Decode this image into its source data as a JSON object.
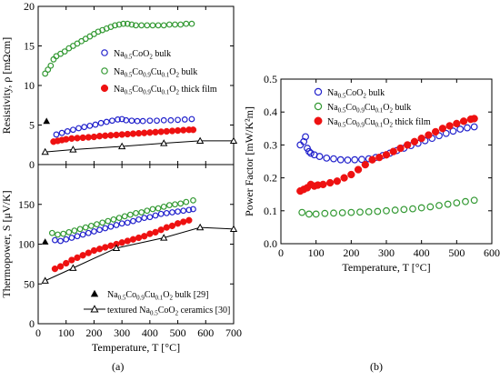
{
  "chart_data": [
    {
      "id": "a_top",
      "type": "scatter",
      "ylabel": "Resistivity, ρ [mΩcm]",
      "xlim": [
        0,
        700
      ],
      "ylim": [
        0,
        20
      ],
      "yticks": [
        0,
        5,
        10,
        15,
        20
      ],
      "xticks": [
        0,
        100,
        200,
        300,
        400,
        500,
        600,
        700
      ],
      "show_x_ticklabels": false,
      "legend": {
        "position": "middle-right",
        "entries": [
          {
            "pre": "Na",
            "sub1": "0.5",
            "post1": "CoO",
            "sub2": "2",
            "post2": " bulk"
          },
          {
            "pre": "Na",
            "sub1": "0.5",
            "post1": "Co",
            "sub2": "0.9",
            "post2": "Cu",
            "sub3": "0.1",
            "post3": "O",
            "sub4": "2",
            "post4": " bulk"
          },
          {
            "pre": "Na",
            "sub1": "0.5",
            "post1": "Co",
            "sub2": "0.9",
            "post2": "Cu",
            "sub3": "0.1",
            "post3": "O",
            "sub4": "2",
            "post4": " thick film"
          }
        ]
      },
      "series": [
        {
          "key": "blue",
          "marker": "open-circle",
          "color": "#2222cc",
          "x": [
            65,
            85,
            105,
            125,
            145,
            165,
            185,
            205,
            225,
            245,
            265,
            285,
            300,
            315,
            335,
            355,
            375,
            400,
            425,
            450,
            475,
            500,
            525,
            550
          ],
          "y": [
            3.8,
            4.0,
            4.2,
            4.4,
            4.6,
            4.75,
            4.9,
            5.05,
            5.25,
            5.4,
            5.55,
            5.7,
            5.75,
            5.6,
            5.55,
            5.5,
            5.5,
            5.55,
            5.55,
            5.6,
            5.6,
            5.65,
            5.7,
            5.75
          ]
        },
        {
          "key": "green",
          "marker": "open-circle",
          "color": "#339933",
          "x": [
            25,
            35,
            45,
            55,
            65,
            80,
            95,
            110,
            125,
            140,
            155,
            170,
            185,
            200,
            215,
            230,
            245,
            260,
            275,
            290,
            305,
            320,
            335,
            350,
            370,
            390,
            410,
            430,
            450,
            470,
            490,
            510,
            530,
            550
          ],
          "y": [
            11.5,
            12.0,
            12.5,
            13.3,
            13.7,
            14.0,
            14.3,
            14.7,
            15.0,
            15.3,
            15.6,
            15.9,
            16.2,
            16.5,
            16.8,
            17.0,
            17.2,
            17.4,
            17.6,
            17.7,
            17.8,
            17.8,
            17.7,
            17.6,
            17.6,
            17.6,
            17.6,
            17.6,
            17.6,
            17.7,
            17.7,
            17.7,
            17.8,
            17.8
          ]
        },
        {
          "key": "red",
          "marker": "filled-circle",
          "color": "#ee1111",
          "x": [
            55,
            70,
            85,
            100,
            120,
            140,
            160,
            180,
            200,
            220,
            240,
            260,
            280,
            300,
            320,
            340,
            360,
            380,
            400,
            420,
            440,
            460,
            480,
            500,
            520,
            540,
            555
          ],
          "y": [
            2.9,
            3.0,
            3.1,
            3.2,
            3.3,
            3.35,
            3.4,
            3.45,
            3.5,
            3.6,
            3.65,
            3.7,
            3.75,
            3.8,
            3.85,
            3.9,
            3.95,
            4.0,
            4.05,
            4.1,
            4.15,
            4.2,
            4.25,
            4.3,
            4.35,
            4.4,
            4.4
          ]
        },
        {
          "key": "ref29",
          "marker": "filled-triangle",
          "color": "#000000",
          "x": [
            30
          ],
          "y": [
            5.5
          ]
        },
        {
          "key": "ref30",
          "marker": "open-triangle-line",
          "color": "#000000",
          "x": [
            25,
            125,
            300,
            450,
            580,
            700
          ],
          "y": [
            1.6,
            1.9,
            2.3,
            2.7,
            3.0,
            3.0
          ]
        }
      ]
    },
    {
      "id": "a_bottom",
      "type": "scatter",
      "xlabel": "Temperature, T [°C]",
      "ylabel": "Thermopower, S [μV/K]",
      "xlim": [
        0,
        700
      ],
      "ylim": [
        0,
        200
      ],
      "yticks": [
        0,
        50,
        100,
        150
      ],
      "xticks": [
        0,
        100,
        200,
        300,
        400,
        500,
        600,
        700
      ],
      "show_x_ticklabels": true,
      "legend": {
        "position": "bottom-center",
        "entries": [
          {
            "pre": "Na",
            "sub1": "0.5",
            "post1": "Co",
            "sub2": "0.9",
            "post2": "Cu",
            "sub3": "0.1",
            "post3": "O",
            "sub4": "2",
            "post4": " bulk [29]"
          },
          {
            "pre": "textured Na",
            "sub1": "0.5",
            "post1": "CoO",
            "sub2": "2",
            "post2": " ceramics [30]"
          }
        ]
      },
      "series": [
        {
          "key": "blue",
          "marker": "open-circle",
          "color": "#2222cc",
          "x": [
            60,
            80,
            100,
            120,
            140,
            160,
            180,
            200,
            220,
            240,
            260,
            280,
            300,
            320,
            340,
            360,
            380,
            400,
            420,
            440,
            460,
            480,
            500,
            520,
            540,
            555
          ],
          "y": [
            105,
            104,
            106,
            108,
            110,
            112,
            114,
            116,
            118,
            120,
            122,
            124,
            126,
            127,
            129,
            131,
            133,
            134,
            136,
            138,
            139,
            140,
            141,
            142,
            143,
            144
          ]
        },
        {
          "key": "green",
          "marker": "open-circle",
          "color": "#339933",
          "x": [
            50,
            70,
            90,
            110,
            130,
            150,
            170,
            190,
            210,
            230,
            250,
            270,
            290,
            310,
            330,
            350,
            370,
            390,
            410,
            430,
            450,
            470,
            490,
            510,
            530,
            555
          ],
          "y": [
            114,
            112,
            113,
            115,
            117,
            119,
            121,
            123,
            125,
            127,
            129,
            131,
            133,
            135,
            137,
            139,
            140,
            142,
            144,
            145,
            147,
            149,
            150,
            151,
            153,
            155
          ]
        },
        {
          "key": "red",
          "marker": "filled-circle",
          "color": "#ee1111",
          "x": [
            60,
            80,
            100,
            120,
            140,
            160,
            180,
            200,
            220,
            240,
            260,
            280,
            300,
            320,
            340,
            360,
            380,
            400,
            420,
            440,
            460,
            480,
            500,
            520,
            540
          ],
          "y": [
            69,
            72,
            76,
            80,
            83,
            86,
            89,
            92,
            94,
            96,
            98,
            100,
            102,
            104,
            106,
            108,
            110,
            113,
            115,
            118,
            121,
            123,
            126,
            128,
            130
          ]
        },
        {
          "key": "ref29",
          "marker": "filled-triangle",
          "color": "#000000",
          "x": [
            25
          ],
          "y": [
            103
          ]
        },
        {
          "key": "ref30",
          "marker": "open-triangle-line",
          "color": "#000000",
          "x": [
            25,
            125,
            280,
            450,
            580,
            700
          ],
          "y": [
            54,
            70,
            95,
            108,
            121,
            119
          ]
        }
      ]
    },
    {
      "id": "b",
      "type": "scatter",
      "xlabel": "Temperature, T [°C]",
      "ylabel": "Power Factor [mW/K²m]",
      "xlim": [
        0,
        600
      ],
      "ylim": [
        0.0,
        0.5
      ],
      "yticks": [
        0.0,
        0.1,
        0.2,
        0.3,
        0.4,
        0.5
      ],
      "xticks": [
        0,
        100,
        200,
        300,
        400,
        500,
        600
      ],
      "show_x_ticklabels": true,
      "legend": {
        "position": "top-right",
        "entries": [
          {
            "pre": "Na",
            "sub1": "0.5",
            "post1": "CoO",
            "sub2": "2",
            "post2": " bulk"
          },
          {
            "pre": "Na",
            "sub1": "0.5",
            "post1": "Co",
            "sub2": "0.9",
            "post2": "Cu",
            "sub3": "0.1",
            "post3": "O",
            "sub4": "2",
            "post4": " bulk"
          },
          {
            "pre": "Na",
            "sub1": "0.5",
            "post1": "Co",
            "sub2": "0.9",
            "post2": "Cu",
            "sub3": "0.1",
            "post3": "O",
            "sub4": "2",
            "post4": " thick film"
          }
        ]
      },
      "series": [
        {
          "key": "blue",
          "marker": "open-circle",
          "color": "#2222cc",
          "x": [
            55,
            65,
            70,
            75,
            80,
            85,
            95,
            110,
            130,
            150,
            170,
            190,
            210,
            230,
            250,
            270,
            290,
            310,
            330,
            350,
            370,
            390,
            410,
            430,
            450,
            470,
            490,
            510,
            530,
            550
          ],
          "y": [
            0.3,
            0.31,
            0.325,
            0.29,
            0.28,
            0.275,
            0.27,
            0.265,
            0.26,
            0.258,
            0.255,
            0.254,
            0.255,
            0.256,
            0.258,
            0.262,
            0.268,
            0.275,
            0.283,
            0.29,
            0.298,
            0.305,
            0.313,
            0.32,
            0.328,
            0.335,
            0.342,
            0.348,
            0.352,
            0.355
          ]
        },
        {
          "key": "green",
          "marker": "open-circle",
          "color": "#339933",
          "x": [
            60,
            80,
            100,
            125,
            150,
            175,
            200,
            225,
            250,
            275,
            300,
            325,
            350,
            375,
            400,
            425,
            450,
            475,
            500,
            525,
            550
          ],
          "y": [
            0.095,
            0.09,
            0.09,
            0.092,
            0.093,
            0.094,
            0.095,
            0.096,
            0.097,
            0.098,
            0.1,
            0.102,
            0.104,
            0.106,
            0.109,
            0.112,
            0.116,
            0.12,
            0.124,
            0.128,
            0.132
          ]
        },
        {
          "key": "red",
          "marker": "filled-circle",
          "color": "#ee1111",
          "x": [
            55,
            65,
            75,
            85,
            95,
            105,
            120,
            140,
            160,
            180,
            200,
            220,
            240,
            260,
            280,
            300,
            320,
            340,
            360,
            380,
            400,
            420,
            440,
            460,
            480,
            500,
            520,
            540,
            550
          ],
          "y": [
            0.16,
            0.165,
            0.17,
            0.18,
            0.175,
            0.178,
            0.18,
            0.185,
            0.19,
            0.2,
            0.21,
            0.225,
            0.24,
            0.255,
            0.262,
            0.27,
            0.28,
            0.29,
            0.3,
            0.31,
            0.32,
            0.33,
            0.34,
            0.35,
            0.358,
            0.365,
            0.372,
            0.378,
            0.38
          ]
        }
      ]
    }
  ],
  "panel_labels": {
    "a": "(a)",
    "b": "(b)"
  }
}
